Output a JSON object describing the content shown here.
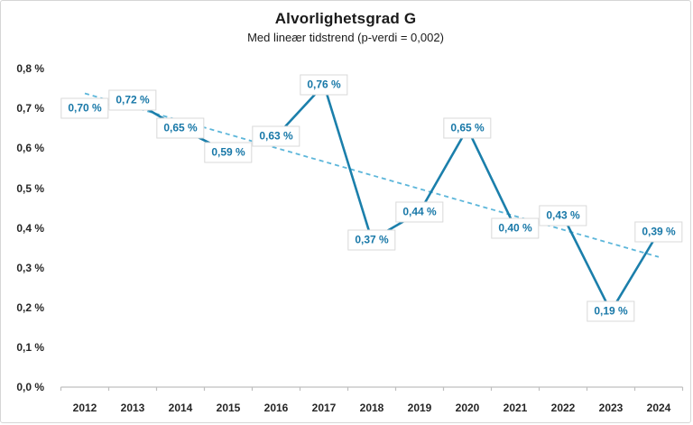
{
  "chart": {
    "title": "Alvorlighetsgrad G",
    "subtitle": "Med lineær tidstrend (p-verdi = 0,002)"
  },
  "chart_data": {
    "type": "line",
    "title": "Alvorlighetsgrad G",
    "subtitle": "Med lineær tidstrend (p-verdi = 0,002)",
    "categories": [
      "2012",
      "2013",
      "2014",
      "2015",
      "2016",
      "2017",
      "2018",
      "2019",
      "2020",
      "2021",
      "2022",
      "2023",
      "2024"
    ],
    "series": [
      {
        "name": "Alvorlighetsgrad G",
        "values": [
          0.7,
          0.72,
          0.65,
          0.59,
          0.63,
          0.76,
          0.37,
          0.44,
          0.65,
          0.4,
          0.43,
          0.19,
          0.39
        ]
      }
    ],
    "point_labels": [
      "0,70 %",
      "0,72 %",
      "0,65 %",
      "0,59 %",
      "0,63 %",
      "0,76 %",
      "0,37 %",
      "0,44 %",
      "0,65 %",
      "0,40 %",
      "0,43 %",
      "0,19 %",
      "0,39 %"
    ],
    "y_ticks": [
      "0,0 %",
      "0,1 %",
      "0,2 %",
      "0,3 %",
      "0,4 %",
      "0,5 %",
      "0,6 %",
      "0,7 %",
      "0,8 %"
    ],
    "y_tick_values": [
      0.0,
      0.1,
      0.2,
      0.3,
      0.4,
      0.5,
      0.6,
      0.7,
      0.8
    ],
    "ylim": [
      0.0,
      0.8
    ],
    "xlabel": "",
    "ylabel": "",
    "grid": false,
    "legend_position": "none",
    "trendline": {
      "type": "linear",
      "style": "dashed",
      "start_value": 0.738,
      "end_value": 0.327
    },
    "colors": {
      "line": "#1b7fab",
      "trendline": "#5cb6da",
      "label_text": "#1878a8",
      "label_border": "#d9d9d9",
      "label_background": "#ffffff",
      "axis": "#bfbfbf",
      "axis_text": "#262626",
      "title_text": "#1a1a1a"
    }
  }
}
